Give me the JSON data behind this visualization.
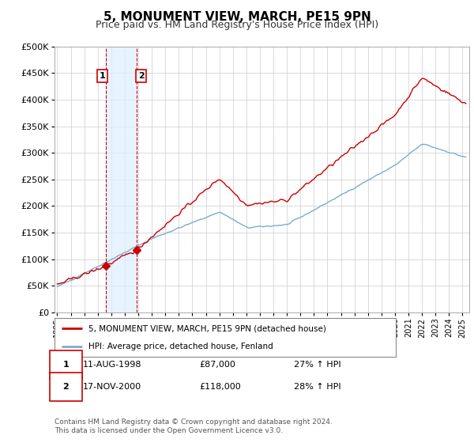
{
  "title": "5, MONUMENT VIEW, MARCH, PE15 9PN",
  "subtitle": "Price paid vs. HM Land Registry's House Price Index (HPI)",
  "ylabel_ticks": [
    "£0",
    "£50K",
    "£100K",
    "£150K",
    "£200K",
    "£250K",
    "£300K",
    "£350K",
    "£400K",
    "£450K",
    "£500K"
  ],
  "ytick_values": [
    0,
    50000,
    100000,
    150000,
    200000,
    250000,
    300000,
    350000,
    400000,
    450000,
    500000
  ],
  "ylim": [
    0,
    500000
  ],
  "xlim_start": 1994.8,
  "xlim_end": 2025.5,
  "sale1_x": 1998.61,
  "sale1_y": 87000,
  "sale1_label": "1",
  "sale1_date": "11-AUG-1998",
  "sale1_price": "£87,000",
  "sale1_hpi": "27% ↑ HPI",
  "sale2_x": 2000.88,
  "sale2_y": 118000,
  "sale2_label": "2",
  "sale2_date": "17-NOV-2000",
  "sale2_price": "£118,000",
  "sale2_hpi": "28% ↑ HPI",
  "legend_line1": "5, MONUMENT VIEW, MARCH, PE15 9PN (detached house)",
  "legend_line2": "HPI: Average price, detached house, Fenland",
  "footer": "Contains HM Land Registry data © Crown copyright and database right 2024.\nThis data is licensed under the Open Government Licence v3.0.",
  "line_color_red": "#cc0000",
  "line_color_blue": "#7aacd6",
  "background_color": "#ffffff",
  "grid_color": "#cccccc",
  "sale_marker_color": "#cc0000",
  "shade_color": "#ddeeff"
}
